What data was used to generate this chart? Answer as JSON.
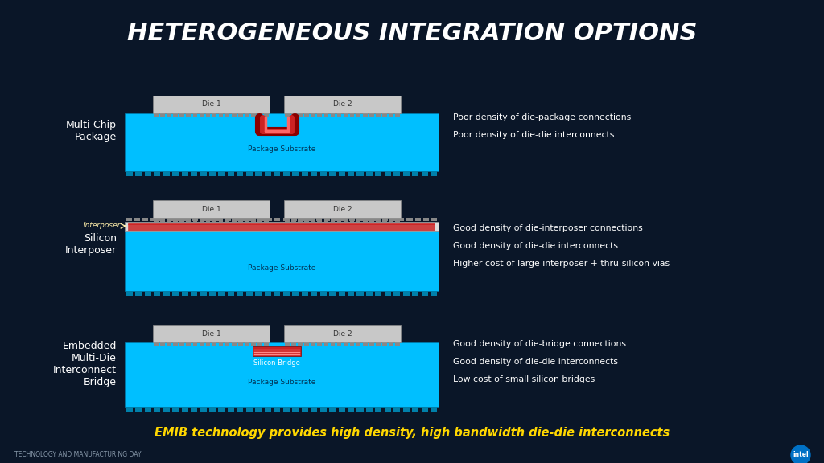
{
  "title": "HETEROGENEOUS INTEGRATION OPTIONS",
  "title_color": "#FFFFFF",
  "background_color": "#0a1628",
  "diagram_bg": "#0d1f3a",
  "cyan_color": "#00BFFF",
  "gray_die_color": "#C8C8C8",
  "red_color": "#CC2222",
  "dark_red": "#8B0000",
  "footer_text": "TECHNOLOGY AND MANUFACTURING DAY",
  "emib_text": "EMIB technology provides high density, high bandwidth die-die interconnects",
  "emib_color": "#FFD700",
  "rows": [
    {
      "label": "Multi-Chip\nPackage",
      "desc": [
        "Poor density of die-package connections",
        "Poor density of die-die interconnects"
      ],
      "type": "mcp"
    },
    {
      "label": "Silicon\nInterposer",
      "desc": [
        "Good density of die-interposer connections",
        "Good density of die-die interconnects",
        "Higher cost of large interposer + thru-silicon vias"
      ],
      "type": "interposer"
    },
    {
      "label": "Embedded\nMulti-Die\nInterconnect\nBridge",
      "desc": [
        "Good density of die-bridge connections",
        "Good density of die-die interconnects",
        "Low cost of small silicon bridges"
      ],
      "type": "emib"
    }
  ]
}
